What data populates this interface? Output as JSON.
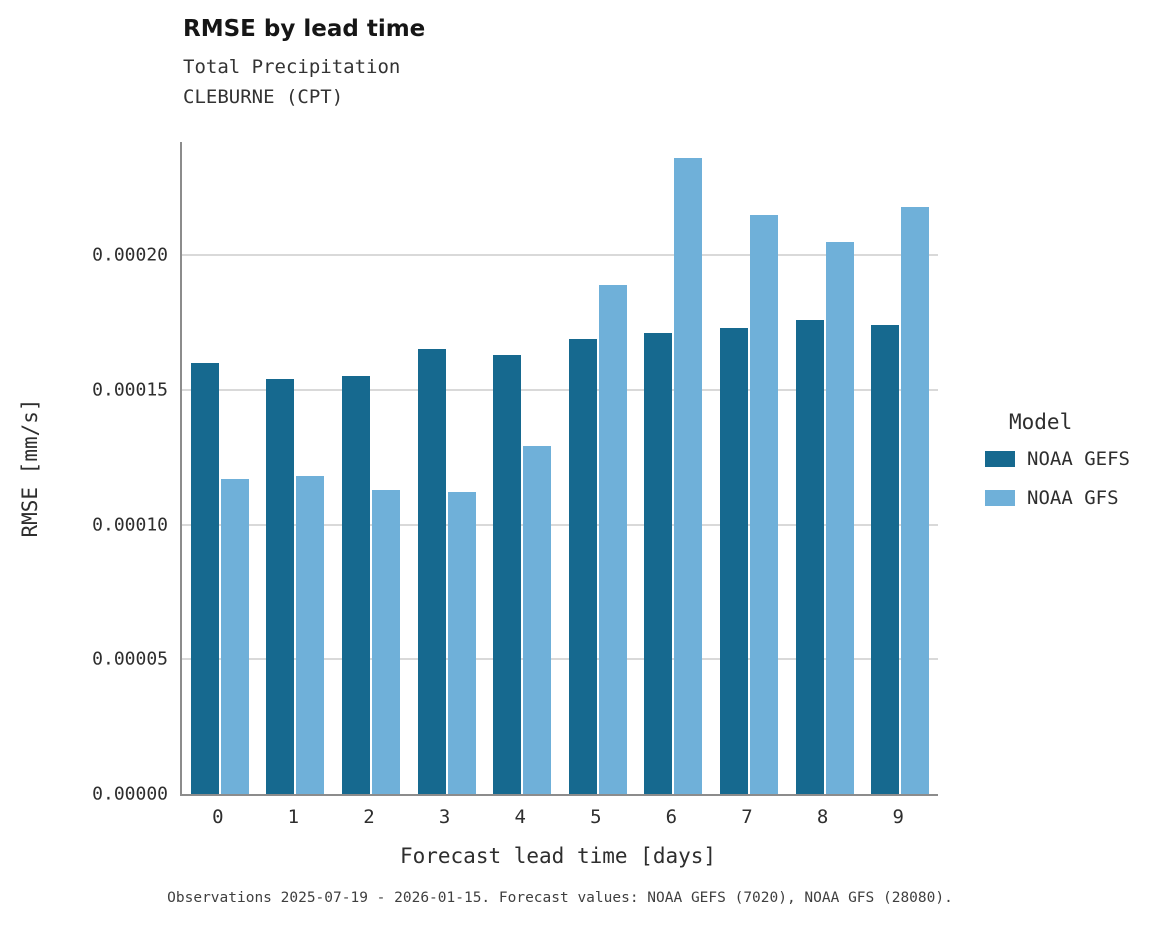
{
  "title": "RMSE by lead time",
  "subtitle_line1": "Total Precipitation",
  "subtitle_line2": "CLEBURNE (CPT)",
  "caption": "Observations 2025-07-19 - 2026-01-15. Forecast values: NOAA GEFS (7020), NOAA GFS (28080).",
  "legend": {
    "title": "Model",
    "entries": [
      {
        "label": "NOAA GEFS",
        "color": "#16698f"
      },
      {
        "label": "NOAA GFS",
        "color": "#6fb0d9"
      }
    ]
  },
  "chart_data": {
    "type": "bar",
    "title": "RMSE by lead time",
    "subtitle": "Total Precipitation — CLEBURNE (CPT)",
    "xlabel": "Forecast lead time [days]",
    "ylabel": "RMSE [mm/s]",
    "categories": [
      0,
      1,
      2,
      3,
      4,
      5,
      6,
      7,
      8,
      9
    ],
    "series": [
      {
        "name": "NOAA GEFS",
        "color": "#16698f",
        "values": [
          0.00016,
          0.000154,
          0.000155,
          0.000165,
          0.000163,
          0.000169,
          0.000171,
          0.000173,
          0.000176,
          0.000174
        ]
      },
      {
        "name": "NOAA GFS",
        "color": "#6fb0d9",
        "values": [
          0.000117,
          0.000118,
          0.000113,
          0.000112,
          0.000129,
          0.000189,
          0.000236,
          0.000215,
          0.000205,
          0.000218
        ]
      }
    ],
    "ylim": [
      0,
      0.000242
    ],
    "yticks": [
      0,
      5e-05,
      0.0001,
      0.00015,
      0.0002
    ],
    "ytick_labels": [
      "0.00000",
      "0.00005",
      "0.00010",
      "0.00015",
      "0.00020"
    ],
    "grid": true,
    "legend_position": "right"
  }
}
